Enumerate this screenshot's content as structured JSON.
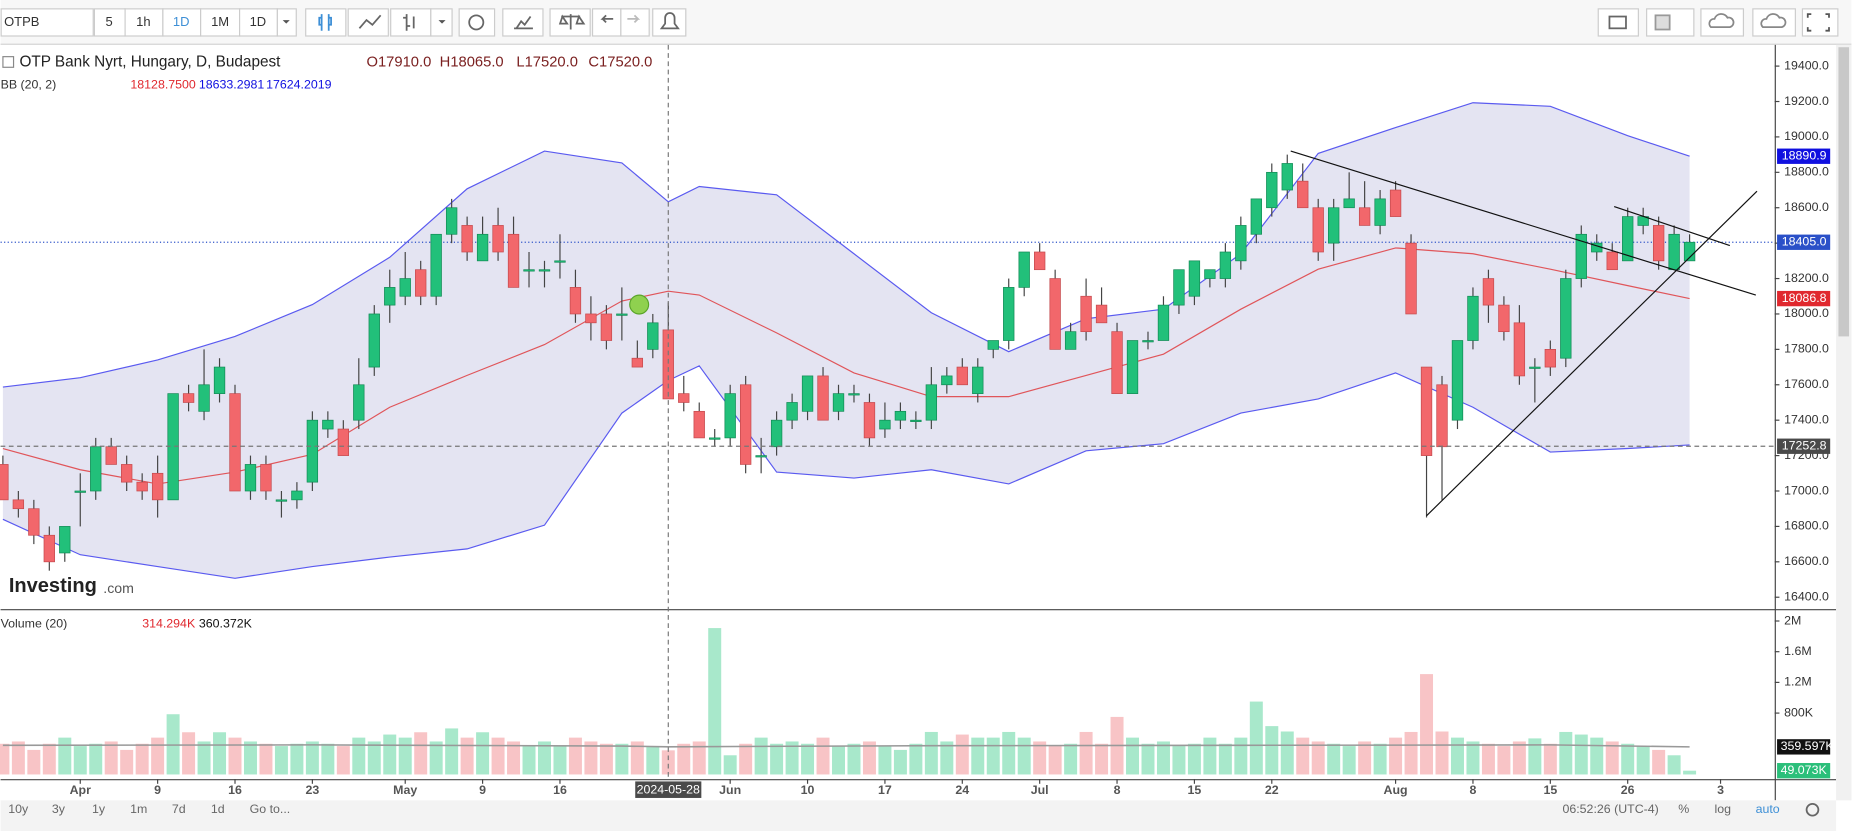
{
  "toolbar": {
    "symbol": "OTPB",
    "intervals": [
      "5",
      "1h",
      "1D",
      "1M",
      "1D"
    ]
  },
  "legend": {
    "title": "OTP Bank Nyrt, Hungary, D, Budapest",
    "ohlc": [
      "O17910.0",
      "H18065.0",
      "L17520.0",
      "C17520.0"
    ]
  },
  "bb_legend": {
    "name": "BB (20, 2)",
    "values": [
      "18128.7500",
      "18633.2981",
      "17624.2019"
    ]
  },
  "volume_legend": {
    "name": "Volume (20)",
    "values": [
      "314.294K",
      "360.372K"
    ]
  },
  "logo": [
    "Investing",
    ".com"
  ],
  "crosshair": {
    "x": 43,
    "date": "2024-05-28",
    "price": {
      "value": 17252.8,
      "label": "17252.8"
    }
  },
  "chart_data": [
    {
      "type": "candlestick",
      "up_color": "#22c07a",
      "down_color": "#f2676b",
      "ohlc": [
        [
          17150,
          17200,
          16950,
          16950
        ],
        [
          16950,
          17000,
          16850,
          16900
        ],
        [
          16900,
          16950,
          16700,
          16750
        ],
        [
          16750,
          16800,
          16550,
          16600
        ],
        [
          16650,
          16800,
          16600,
          16800
        ],
        [
          17000,
          17100,
          16800,
          17000
        ],
        [
          17000,
          17300,
          16950,
          17250
        ],
        [
          17250,
          17300,
          17150,
          17150
        ],
        [
          17150,
          17200,
          17000,
          17050
        ],
        [
          17050,
          17100,
          16950,
          17000
        ],
        [
          17100,
          17200,
          16850,
          16950
        ],
        [
          16950,
          17550,
          16950,
          17550
        ],
        [
          17550,
          17600,
          17450,
          17500
        ],
        [
          17450,
          17800,
          17400,
          17600
        ],
        [
          17550,
          17750,
          17500,
          17700
        ],
        [
          17550,
          17600,
          17000,
          17000
        ],
        [
          17000,
          17200,
          16950,
          17150
        ],
        [
          17150,
          17200,
          16950,
          17000
        ],
        [
          16950,
          17000,
          16850,
          16950
        ],
        [
          16950,
          17050,
          16900,
          17000
        ],
        [
          17050,
          17450,
          17000,
          17400
        ],
        [
          17350,
          17450,
          17300,
          17400
        ],
        [
          17350,
          17400,
          17200,
          17200
        ],
        [
          17400,
          17750,
          17350,
          17600
        ],
        [
          17700,
          18050,
          17650,
          18000
        ],
        [
          18050,
          18250,
          17950,
          18150
        ],
        [
          18100,
          18350,
          18050,
          18200
        ],
        [
          18250,
          18300,
          18050,
          18100
        ],
        [
          18100,
          18450,
          18050,
          18450
        ],
        [
          18450,
          18650,
          18400,
          18600
        ],
        [
          18500,
          18550,
          18300,
          18350
        ],
        [
          18300,
          18550,
          18300,
          18450
        ],
        [
          18500,
          18600,
          18300,
          18350
        ],
        [
          18450,
          18550,
          18150,
          18150
        ],
        [
          18250,
          18350,
          18150,
          18250
        ],
        [
          18250,
          18300,
          18150,
          18250
        ],
        [
          18300,
          18450,
          18200,
          18300
        ],
        [
          18150,
          18250,
          17950,
          18000
        ],
        [
          18000,
          18100,
          17850,
          17950
        ],
        [
          18000,
          18050,
          17800,
          17850
        ],
        [
          18000,
          18150,
          17850,
          18000
        ],
        [
          17750,
          17850,
          17700,
          17700
        ],
        [
          17800,
          18000,
          17750,
          17950
        ],
        [
          17910,
          18065,
          17520,
          17520
        ],
        [
          17550,
          17650,
          17450,
          17500
        ],
        [
          17450,
          17500,
          17300,
          17300
        ],
        [
          17300,
          17350,
          17250,
          17300
        ],
        [
          17300,
          17600,
          17250,
          17550
        ],
        [
          17600,
          17650,
          17100,
          17150
        ],
        [
          17200,
          17300,
          17100,
          17200
        ],
        [
          17250,
          17450,
          17200,
          17400
        ],
        [
          17400,
          17550,
          17350,
          17500
        ],
        [
          17450,
          17650,
          17400,
          17650
        ],
        [
          17650,
          17700,
          17400,
          17400
        ],
        [
          17450,
          17600,
          17400,
          17550
        ],
        [
          17550,
          17600,
          17500,
          17550
        ],
        [
          17500,
          17550,
          17250,
          17300
        ],
        [
          17350,
          17500,
          17300,
          17400
        ],
        [
          17400,
          17500,
          17350,
          17450
        ],
        [
          17400,
          17450,
          17350,
          17400
        ],
        [
          17400,
          17700,
          17350,
          17600
        ],
        [
          17600,
          17700,
          17550,
          17650
        ],
        [
          17700,
          17750,
          17600,
          17600
        ],
        [
          17550,
          17750,
          17500,
          17700
        ],
        [
          17800,
          17850,
          17750,
          17850
        ],
        [
          17850,
          18200,
          17800,
          18150
        ],
        [
          18150,
          18350,
          18100,
          18350
        ],
        [
          18350,
          18400,
          18250,
          18250
        ],
        [
          18200,
          18250,
          17800,
          17800
        ],
        [
          17800,
          17950,
          17800,
          17900
        ],
        [
          18100,
          18200,
          17850,
          17900
        ],
        [
          18050,
          18150,
          17950,
          17950
        ],
        [
          17900,
          17950,
          17550,
          17550
        ],
        [
          17550,
          17850,
          17550,
          17850
        ],
        [
          17850,
          17900,
          17800,
          17850
        ],
        [
          17850,
          18100,
          17850,
          18050
        ],
        [
          18050,
          18250,
          18000,
          18250
        ],
        [
          18100,
          18300,
          18050,
          18300
        ],
        [
          18200,
          18250,
          18150,
          18250
        ],
        [
          18200,
          18400,
          18150,
          18350
        ],
        [
          18300,
          18550,
          18250,
          18500
        ],
        [
          18450,
          18650,
          18400,
          18650
        ],
        [
          18600,
          18850,
          18550,
          18800
        ],
        [
          18700,
          18900,
          18650,
          18850
        ],
        [
          18750,
          18850,
          18600,
          18600
        ],
        [
          18600,
          18650,
          18300,
          18350
        ],
        [
          18400,
          18650,
          18300,
          18600
        ],
        [
          18600,
          18800,
          18600,
          18650
        ],
        [
          18600,
          18750,
          18500,
          18500
        ],
        [
          18500,
          18700,
          18450,
          18650
        ],
        [
          18700,
          18750,
          18550,
          18550
        ],
        [
          18400,
          18450,
          18000,
          18000
        ],
        [
          17700,
          17700,
          16850,
          17200
        ],
        [
          17600,
          17650,
          16950,
          17250
        ],
        [
          17400,
          17850,
          17350,
          17850
        ],
        [
          17850,
          18150,
          17800,
          18100
        ],
        [
          18200,
          18250,
          17950,
          18050
        ],
        [
          18050,
          18100,
          17850,
          17900
        ],
        [
          17950,
          18050,
          17600,
          17650
        ],
        [
          17700,
          17750,
          17500,
          17700
        ],
        [
          17800,
          17850,
          17650,
          17700
        ],
        [
          17750,
          18250,
          17700,
          18200
        ],
        [
          18200,
          18500,
          18150,
          18450
        ],
        [
          18350,
          18450,
          18300,
          18400
        ],
        [
          18350,
          18400,
          18250,
          18250
        ],
        [
          18300,
          18600,
          18300,
          18550
        ],
        [
          18500,
          18600,
          18450,
          18550
        ],
        [
          18500,
          18550,
          18250,
          18300
        ],
        [
          18250,
          18500,
          18250,
          18450
        ],
        [
          18300,
          18450,
          18300,
          18405
        ]
      ],
      "band_fill": "#e4e4f2",
      "series": [
        {
          "color": "#5a5af0",
          "x": [
            0,
            5,
            10,
            15,
            20,
            25,
            30,
            35,
            40,
            43,
            45,
            50,
            55,
            60,
            65,
            70,
            75,
            80,
            85,
            90,
            95,
            100,
            105,
            109
          ],
          "values": [
            17587,
            17640,
            17740,
            17873,
            18053,
            18320,
            18707,
            18920,
            18853,
            18633.2981,
            18720,
            18673,
            18340,
            18007,
            17787,
            17973,
            18027,
            18340,
            18907,
            19053,
            19193,
            19173,
            19007,
            18890.9
          ]
        },
        {
          "color": "#e0555a",
          "x": [
            0,
            5,
            10,
            15,
            20,
            25,
            30,
            35,
            40,
            43,
            45,
            50,
            55,
            60,
            65,
            70,
            75,
            80,
            85,
            90,
            95,
            100,
            105,
            109
          ],
          "values": [
            17240,
            17120,
            17040,
            17107,
            17207,
            17473,
            17653,
            17827,
            18073,
            18128.75,
            18107,
            17893,
            17667,
            17533,
            17533,
            17653,
            17773,
            18027,
            18253,
            18373,
            18340,
            18253,
            18160,
            18086.8
          ]
        },
        {
          "color": "#5a5af0",
          "x": [
            0,
            5,
            10,
            15,
            20,
            25,
            30,
            35,
            40,
            43,
            45,
            50,
            55,
            60,
            65,
            70,
            75,
            80,
            85,
            90,
            95,
            100,
            105,
            109
          ],
          "values": [
            16840,
            16640,
            16573,
            16507,
            16573,
            16627,
            16673,
            16807,
            17440,
            17624.2019,
            17707,
            17107,
            17073,
            17120,
            17040,
            17227,
            17267,
            17440,
            17520,
            17667,
            17473,
            17220,
            17240,
            17260
          ]
        }
      ],
      "xlim": [
        -0.15,
        114.5
      ],
      "ylim": [
        16333,
        19520
      ],
      "yticks": [
        {
          "value": 16400,
          "label": "16400.0"
        },
        {
          "value": 16600,
          "label": "16600.0"
        },
        {
          "value": 16800,
          "label": "16800.0"
        },
        {
          "value": 17000,
          "label": "17000.0"
        },
        {
          "value": 17200,
          "label": "17200.0"
        },
        {
          "value": 17400,
          "label": "17400.0"
        },
        {
          "value": 17600,
          "label": "17600.0"
        },
        {
          "value": 17800,
          "label": "17800.0"
        },
        {
          "value": 18000,
          "label": "18000.0"
        },
        {
          "value": 18200,
          "label": "18200.0"
        },
        {
          "value": 18400,
          "label": "18400.0"
        },
        {
          "value": 18600,
          "label": "18600.0"
        },
        {
          "value": 18800,
          "label": "18800.0"
        },
        {
          "value": 19000,
          "label": "19000.0"
        },
        {
          "value": 19200,
          "label": "19200.0"
        },
        {
          "value": 19400,
          "label": "19400.0"
        }
      ],
      "xticks": [
        {
          "value": 5,
          "label": "Apr"
        },
        {
          "value": 10,
          "label": "9"
        },
        {
          "value": 15,
          "label": "16"
        },
        {
          "value": 20,
          "label": "23"
        },
        {
          "value": 26,
          "label": "May"
        },
        {
          "value": 31,
          "label": "9"
        },
        {
          "value": 36,
          "label": "16"
        },
        {
          "value": 47,
          "label": "Jun"
        },
        {
          "value": 52,
          "label": "10"
        },
        {
          "value": 57,
          "label": "17"
        },
        {
          "value": 62,
          "label": "24"
        },
        {
          "value": 67,
          "label": "Jul"
        },
        {
          "value": 72,
          "label": "8"
        },
        {
          "value": 77,
          "label": "15"
        },
        {
          "value": 82,
          "label": "22"
        },
        {
          "value": 90,
          "label": "Aug"
        },
        {
          "value": 95,
          "label": "8"
        },
        {
          "value": 100,
          "label": "15"
        },
        {
          "value": 105,
          "label": "26"
        },
        {
          "value": 111,
          "label": "3"
        }
      ],
      "price_tags": [
        {
          "value": 18890.9,
          "label": "18890.9",
          "color": "#1010e0"
        },
        {
          "value": 18405,
          "label": "18405.0",
          "color": "#2a50c8"
        },
        {
          "value": 18086.8,
          "label": "18086.8",
          "color": "#e0282e"
        }
      ]
    },
    {
      "type": "bar",
      "up_color": "#a8e8cb",
      "down_color": "#f8c4c6",
      "values": [
        400000,
        430000,
        320000,
        400000,
        480000,
        370000,
        400000,
        430000,
        320000,
        400000,
        480000,
        785000,
        550000,
        430000,
        550000,
        480000,
        430000,
        400000,
        370000,
        400000,
        430000,
        400000,
        370000,
        480000,
        430000,
        520000,
        480000,
        550000,
        430000,
        600000,
        480000,
        550000,
        480000,
        430000,
        370000,
        430000,
        370000,
        480000,
        430000,
        400000,
        400000,
        430000,
        370000,
        314294,
        400000,
        430000,
        1908000,
        250000,
        400000,
        480000,
        400000,
        430000,
        400000,
        480000,
        370000,
        400000,
        430000,
        370000,
        320000,
        400000,
        554000,
        430000,
        520000,
        480000,
        480000,
        554000,
        480000,
        430000,
        370000,
        400000,
        554000,
        400000,
        750000,
        480000,
        400000,
        430000,
        370000,
        400000,
        480000,
        400000,
        480000,
        950000,
        630000,
        560000,
        480000,
        430000,
        400000,
        370000,
        430000,
        400000,
        480000,
        554000,
        1308000,
        560000,
        480000,
        430000,
        400000,
        370000,
        430000,
        470000,
        400000,
        554000,
        520000,
        480000,
        430000,
        400000,
        370000,
        320000,
        250000,
        49073
      ],
      "ma": {
        "color": "#999999",
        "x": [
          0,
          20,
          40,
          43,
          60,
          80,
          100,
          109
        ],
        "values": [
          380000,
          385000,
          370000,
          360372,
          375000,
          380000,
          385000,
          359597
        ]
      },
      "ylim": [
        -60000,
        2140000
      ],
      "yticks": [
        {
          "value": 800000,
          "label": "800K"
        },
        {
          "value": 1200000,
          "label": "1.2M"
        },
        {
          "value": 1600000,
          "label": "1.6M"
        },
        {
          "value": 2000000,
          "label": "2M"
        }
      ],
      "value_tags": [
        {
          "value": 359597,
          "label": "359.597K",
          "color": "#111111"
        },
        {
          "value": 49073,
          "label": "49.073K",
          "color": "#2bbf7a"
        }
      ]
    }
  ],
  "bottom_bar": {
    "ranges": [
      "10y",
      "3y",
      "1y",
      "1m",
      "7d",
      "1d"
    ],
    "goto": "Go to...",
    "time": "06:52:26 (UTC-4)",
    "options": [
      "%",
      "log",
      "auto"
    ]
  }
}
